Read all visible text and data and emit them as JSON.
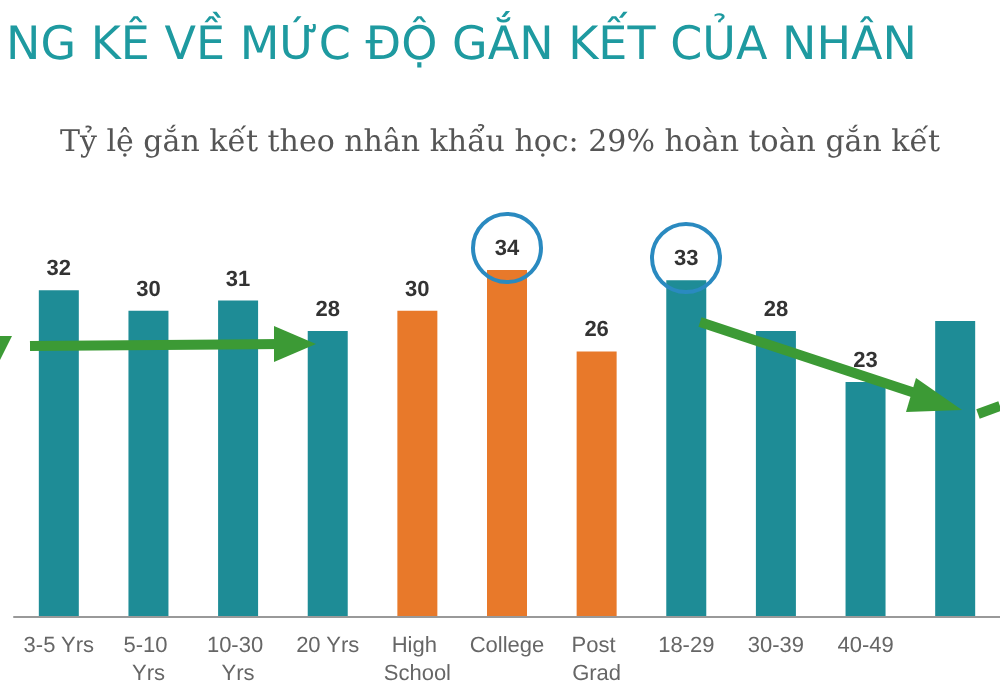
{
  "chart_data": {
    "type": "bar",
    "title": "NG KÊ VỀ MỨC ĐỘ GẮN KẾT CỦA NHÂN",
    "subtitle": "Tỷ lệ gắn kết theo nhân khẩu học: 29% hoàn toàn gắn kết",
    "categories": [
      "3-5 Yrs",
      "5-10 Yrs",
      "10-30 Yrs",
      "20 Yrs",
      "High School",
      "College",
      "Post Grad",
      "18-29",
      "30-39",
      "40-49",
      null
    ],
    "values": [
      32,
      30,
      31,
      28,
      30,
      34,
      26,
      33,
      28,
      23,
      29
    ],
    "value_labels": [
      "32",
      "30",
      "31",
      "28",
      "30",
      "34",
      "26",
      "33",
      "28",
      "23",
      null
    ],
    "colors": [
      "#1e8c96",
      "#1e8c96",
      "#1e8c96",
      "#1e8c96",
      "#e8792a",
      "#e8792a",
      "#e8792a",
      "#1e8c96",
      "#1e8c96",
      "#1e8c96",
      "#1e8c96"
    ]
  }
}
